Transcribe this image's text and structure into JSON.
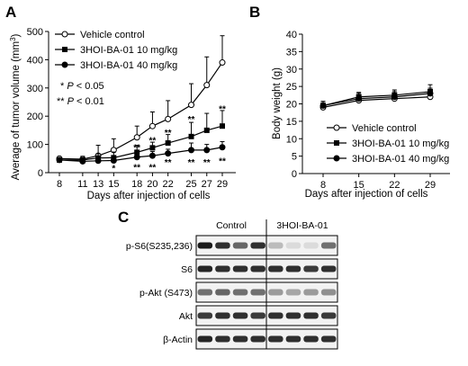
{
  "chart_data": [
    {
      "panel": "A",
      "type": "line",
      "xlabel": "Days after injection of cells",
      "ylabel": "Average of tumor volume (mm",
      "ylabel_sup": "3",
      "ylabel_end": ")",
      "x": [
        8,
        11,
        13,
        15,
        18,
        20,
        22,
        25,
        27,
        29
      ],
      "xticks": [
        "8",
        "11",
        "13",
        "15",
        "18",
        "20",
        "22",
        "25",
        "27",
        "29"
      ],
      "ylim": [
        0,
        500
      ],
      "yticks": [
        "0",
        "100",
        "200",
        "300",
        "400",
        "500"
      ],
      "series": [
        {
          "name": "Vehicle control",
          "marker": "open-circle",
          "values": [
            50,
            48,
            60,
            80,
            125,
            165,
            190,
            240,
            310,
            390
          ],
          "err": [
            5,
            10,
            37,
            40,
            40,
            50,
            65,
            75,
            100,
            95
          ]
        },
        {
          "name": "3HOI-BA-01 10 mg/kg",
          "marker": "filled-square",
          "values": [
            45,
            45,
            52,
            53,
            72,
            88,
            105,
            128,
            150,
            165
          ],
          "err": [
            5,
            8,
            15,
            20,
            25,
            20,
            30,
            50,
            60,
            55
          ]
        },
        {
          "name": "3HOI-BA-01 40 mg/kg",
          "marker": "filled-circle",
          "values": [
            45,
            40,
            42,
            43,
            55,
            60,
            68,
            80,
            80,
            90
          ],
          "err": [
            5,
            8,
            10,
            15,
            10,
            15,
            15,
            25,
            20,
            20
          ]
        }
      ],
      "significance_legend": [
        "* P < 0.05",
        "** P < 0.01"
      ],
      "annotations": [
        {
          "x": 15,
          "y": 15,
          "text": "*"
        },
        {
          "x": 18,
          "y": 17,
          "text": "**"
        },
        {
          "x": 18,
          "y": 88,
          "text": "**"
        },
        {
          "x": 20,
          "y": 17,
          "text": "**"
        },
        {
          "x": 20,
          "y": 113,
          "text": "**"
        },
        {
          "x": 22,
          "y": 35,
          "text": "**"
        },
        {
          "x": 22,
          "y": 140,
          "text": "**"
        },
        {
          "x": 25,
          "y": 35,
          "text": "**"
        },
        {
          "x": 25,
          "y": 188,
          "text": "**"
        },
        {
          "x": 27,
          "y": 35,
          "text": "**"
        },
        {
          "x": 29,
          "y": 40,
          "text": "**"
        },
        {
          "x": 29,
          "y": 225,
          "text": "**"
        }
      ]
    },
    {
      "panel": "B",
      "type": "line",
      "xlabel": "Days after injection of cells",
      "ylabel": "Body weight (g)",
      "x": [
        8,
        15,
        22,
        29
      ],
      "xticks": [
        "8",
        "15",
        "22",
        "29"
      ],
      "ylim": [
        0,
        40
      ],
      "yticks": [
        "0",
        "5",
        "10",
        "15",
        "20",
        "25",
        "30",
        "35",
        "40"
      ],
      "series": [
        {
          "name": "Vehicle control",
          "marker": "open-circle",
          "values": [
            19.0,
            21.0,
            21.5,
            22.0
          ],
          "err": [
            1.2,
            1.2,
            1.3,
            1.5
          ]
        },
        {
          "name": "3HOI-BA-01 10 mg/kg",
          "marker": "filled-square",
          "values": [
            19.5,
            22.0,
            22.5,
            23.5
          ],
          "err": [
            1.2,
            1.3,
            1.5,
            2.0
          ]
        },
        {
          "name": "3HOI-BA-01 40 mg/kg",
          "marker": "filled-circle",
          "values": [
            19.5,
            21.5,
            22.0,
            23.0
          ],
          "err": [
            1.2,
            1.5,
            1.5,
            1.5
          ]
        }
      ]
    }
  ],
  "blot": {
    "panel": "C",
    "groups": [
      "Control",
      "3HOI-BA-01"
    ],
    "rows": [
      "p-S6(S235,236)",
      "S6",
      "p-Akt (S473)",
      "Akt",
      "β-Actin"
    ],
    "band_intensity": [
      [
        0.95,
        0.85,
        0.6,
        0.85,
        0.2,
        0.05,
        0.05,
        0.55
      ],
      [
        0.9,
        0.85,
        0.85,
        0.85,
        0.85,
        0.85,
        0.8,
        0.85
      ],
      [
        0.55,
        0.6,
        0.55,
        0.55,
        0.35,
        0.3,
        0.35,
        0.4
      ],
      [
        0.8,
        0.85,
        0.85,
        0.8,
        0.85,
        0.85,
        0.85,
        0.8
      ],
      [
        0.9,
        0.85,
        0.85,
        0.85,
        0.85,
        0.85,
        0.85,
        0.85
      ]
    ]
  },
  "colors": {
    "line": "#000000",
    "axis": "#000000"
  }
}
